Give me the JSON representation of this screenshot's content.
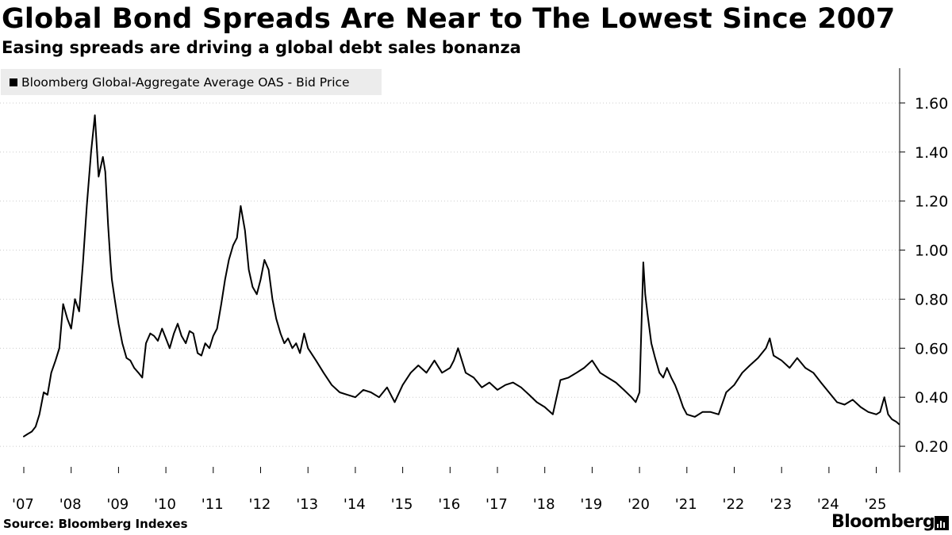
{
  "header": {
    "title": "Global Bond Spreads Are Near to The Lowest Since 2007",
    "subtitle": "Easing spreads are driving a global debt sales bonanza"
  },
  "footer": {
    "source": "Source: Bloomberg Indexes",
    "brand": "Bloomberg"
  },
  "colors": {
    "line": "#000000",
    "grid": "#cccccc",
    "legend_bg": "#ececec"
  },
  "chart_data": {
    "type": "line",
    "title": "Global Bond Spreads Are Near to The Lowest Since 2007",
    "subtitle": "Easing spreads are driving a global debt sales bonanza",
    "xlabel": "",
    "ylabel": "",
    "xlim": [
      2007.0,
      2025.5
    ],
    "ylim": [
      0.1,
      1.7
    ],
    "y_axis_side": "right",
    "grid": "horizontal dotted",
    "legend": {
      "position": "top-left",
      "entries": [
        "Bloomberg Global-Aggregate Average OAS - Bid Price"
      ]
    },
    "yticks": [
      0.2,
      0.4,
      0.6,
      0.8,
      1.0,
      1.2,
      1.4,
      1.6
    ],
    "ytick_labels": [
      "0.20",
      "0.40",
      "0.60",
      "0.80",
      "1.00",
      "1.20",
      "1.40",
      "1.60"
    ],
    "xticks": [
      2007,
      2008,
      2009,
      2010,
      2011,
      2012,
      2013,
      2014,
      2015,
      2016,
      2017,
      2018,
      2019,
      2020,
      2021,
      2022,
      2023,
      2024,
      2025
    ],
    "xtick_labels": [
      "'07",
      "'08",
      "'09",
      "'10",
      "'11",
      "'12",
      "'13",
      "'14",
      "'15",
      "'16",
      "'17",
      "'18",
      "'19",
      "'20",
      "'21",
      "'22",
      "'23",
      "'24",
      "'25"
    ],
    "series": [
      {
        "name": "Bloomberg Global-Aggregate Average OAS - Bid Price",
        "x": [
          2007.0,
          2007.08,
          2007.17,
          2007.25,
          2007.33,
          2007.42,
          2007.5,
          2007.58,
          2007.67,
          2007.75,
          2007.83,
          2007.92,
          2008.0,
          2008.08,
          2008.17,
          2008.25,
          2008.33,
          2008.42,
          2008.5,
          2008.58,
          2008.67,
          2008.72,
          2008.78,
          2008.83,
          2008.86,
          2008.92,
          2009.0,
          2009.08,
          2009.17,
          2009.25,
          2009.33,
          2009.42,
          2009.5,
          2009.58,
          2009.67,
          2009.75,
          2009.83,
          2009.92,
          2010.0,
          2010.08,
          2010.17,
          2010.25,
          2010.33,
          2010.42,
          2010.5,
          2010.58,
          2010.67,
          2010.75,
          2010.83,
          2010.92,
          2011.0,
          2011.08,
          2011.17,
          2011.25,
          2011.33,
          2011.42,
          2011.5,
          2011.58,
          2011.67,
          2011.75,
          2011.83,
          2011.92,
          2012.0,
          2012.08,
          2012.17,
          2012.25,
          2012.33,
          2012.42,
          2012.5,
          2012.58,
          2012.67,
          2012.75,
          2012.83,
          2012.92,
          2013.0,
          2013.17,
          2013.33,
          2013.5,
          2013.67,
          2013.83,
          2014.0,
          2014.17,
          2014.33,
          2014.5,
          2014.67,
          2014.83,
          2015.0,
          2015.17,
          2015.33,
          2015.5,
          2015.67,
          2015.83,
          2016.0,
          2016.08,
          2016.17,
          2016.33,
          2016.5,
          2016.67,
          2016.83,
          2017.0,
          2017.17,
          2017.33,
          2017.5,
          2017.67,
          2017.83,
          2018.0,
          2018.17,
          2018.33,
          2018.5,
          2018.67,
          2018.83,
          2019.0,
          2019.17,
          2019.33,
          2019.5,
          2019.67,
          2019.83,
          2019.92,
          2020.0,
          2020.08,
          2020.12,
          2020.17,
          2020.25,
          2020.33,
          2020.42,
          2020.5,
          2020.58,
          2020.67,
          2020.75,
          2020.83,
          2020.92,
          2021.0,
          2021.17,
          2021.33,
          2021.5,
          2021.67,
          2021.83,
          2022.0,
          2022.17,
          2022.33,
          2022.5,
          2022.67,
          2022.75,
          2022.83,
          2023.0,
          2023.17,
          2023.33,
          2023.5,
          2023.67,
          2023.83,
          2024.0,
          2024.17,
          2024.33,
          2024.5,
          2024.67,
          2024.83,
          2025.0,
          2025.08,
          2025.17,
          2025.25,
          2025.33,
          2025.42,
          2025.48
        ],
        "values": [
          0.24,
          0.25,
          0.26,
          0.28,
          0.33,
          0.42,
          0.41,
          0.5,
          0.55,
          0.6,
          0.78,
          0.72,
          0.68,
          0.8,
          0.75,
          0.95,
          1.18,
          1.4,
          1.55,
          1.3,
          1.38,
          1.32,
          1.1,
          0.95,
          0.88,
          0.8,
          0.7,
          0.62,
          0.56,
          0.55,
          0.52,
          0.5,
          0.48,
          0.62,
          0.66,
          0.65,
          0.63,
          0.68,
          0.64,
          0.6,
          0.66,
          0.7,
          0.65,
          0.62,
          0.67,
          0.66,
          0.58,
          0.57,
          0.62,
          0.6,
          0.65,
          0.68,
          0.78,
          0.88,
          0.96,
          1.02,
          1.05,
          1.18,
          1.08,
          0.92,
          0.85,
          0.82,
          0.88,
          0.96,
          0.92,
          0.8,
          0.72,
          0.66,
          0.62,
          0.64,
          0.6,
          0.62,
          0.58,
          0.66,
          0.6,
          0.55,
          0.5,
          0.45,
          0.42,
          0.41,
          0.4,
          0.43,
          0.42,
          0.4,
          0.44,
          0.38,
          0.45,
          0.5,
          0.53,
          0.5,
          0.55,
          0.5,
          0.52,
          0.55,
          0.6,
          0.5,
          0.48,
          0.44,
          0.46,
          0.43,
          0.45,
          0.46,
          0.44,
          0.41,
          0.38,
          0.36,
          0.33,
          0.47,
          0.48,
          0.5,
          0.52,
          0.55,
          0.5,
          0.48,
          0.46,
          0.43,
          0.4,
          0.38,
          0.42,
          0.95,
          0.82,
          0.74,
          0.62,
          0.56,
          0.5,
          0.48,
          0.52,
          0.48,
          0.45,
          0.41,
          0.36,
          0.33,
          0.32,
          0.34,
          0.34,
          0.33,
          0.42,
          0.45,
          0.5,
          0.53,
          0.56,
          0.6,
          0.64,
          0.57,
          0.55,
          0.52,
          0.56,
          0.52,
          0.5,
          0.46,
          0.42,
          0.38,
          0.37,
          0.39,
          0.36,
          0.34,
          0.33,
          0.34,
          0.4,
          0.33,
          0.31,
          0.3,
          0.29
        ]
      }
    ]
  }
}
